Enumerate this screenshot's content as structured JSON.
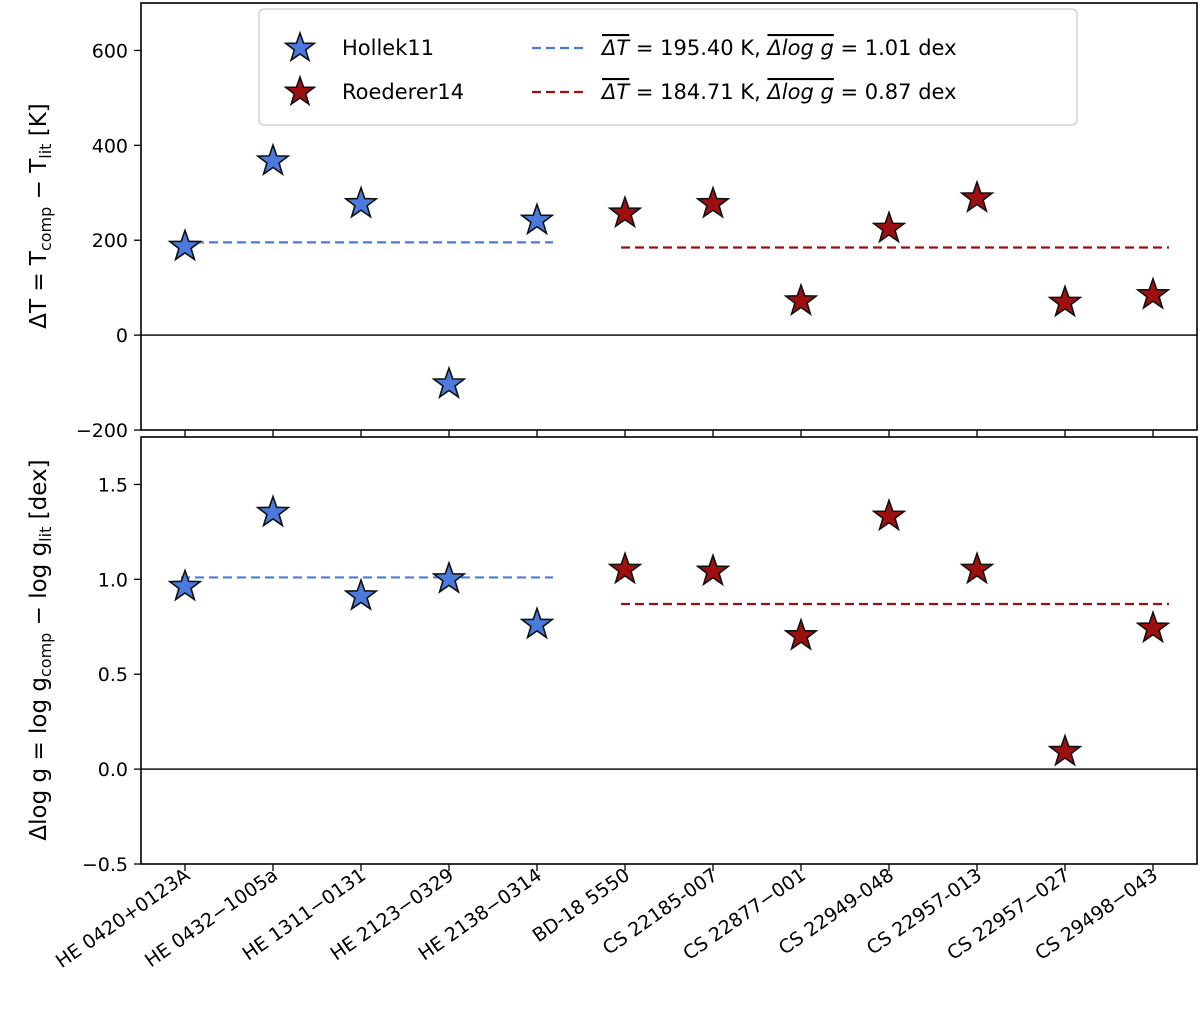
{
  "chart_data": [
    {
      "type": "scatter",
      "panel": "top",
      "ylabel_parts": [
        "ΔT = T",
        "comp",
        " − T",
        "lit",
        " [K]"
      ],
      "ylim": [
        -200,
        700
      ],
      "yticks": [
        -200,
        0,
        200,
        400,
        600
      ],
      "ytick_labels": [
        "−200",
        "0",
        "200",
        "400",
        "600"
      ],
      "categories": [
        "HE 0420+0123A",
        "HE 0432−1005a",
        "HE 1311−0131",
        "HE 2123−0329",
        "HE 2138−0314",
        "BD-18 5550",
        "CS 22185-007",
        "CS 22877−001",
        "CS 22949-048",
        "CS 22957-013",
        "CS 22957−027",
        "CS 29498−043"
      ],
      "series": [
        {
          "name": "Hollek11",
          "color": "#4a7bdc",
          "x_index": [
            0,
            1,
            2,
            3,
            4
          ],
          "values": [
            190,
            370,
            280,
            -100,
            245
          ],
          "mean": 195.4,
          "mean_range": [
            0,
            4
          ]
        },
        {
          "name": "Roederer14",
          "color": "#9e1010",
          "x_index": [
            5,
            6,
            7,
            8,
            9,
            10,
            11
          ],
          "values": [
            260,
            280,
            75,
            228,
            292,
            72,
            88
          ],
          "mean": 184.71,
          "mean_range": [
            5,
            11
          ]
        }
      ],
      "legend": {
        "placement": "top-center",
        "entries": [
          {
            "label": "Hollek11",
            "kind": "marker",
            "color": "#4a7bdc"
          },
          {
            "label": "Roederer14",
            "kind": "marker",
            "color": "#9e1010"
          },
          {
            "label_parts": [
              "ΔT",
              " = 195.40 K, ",
              "Δlog g",
              " = 1.01 dex"
            ],
            "kind": "dashed",
            "color": "#4a7bdc"
          },
          {
            "label_parts": [
              "ΔT",
              " = 184.71 K, ",
              "Δlog g",
              " = 0.87 dex"
            ],
            "kind": "dashed",
            "color": "#9e1010"
          }
        ]
      }
    },
    {
      "type": "scatter",
      "panel": "bottom",
      "ylabel_parts": [
        "Δlog g = log g",
        "comp",
        " − log g",
        "lit",
        " [dex]"
      ],
      "ylim": [
        -0.5,
        1.75
      ],
      "yticks": [
        -0.5,
        0.0,
        0.5,
        1.0,
        1.5
      ],
      "ytick_labels": [
        "−0.5",
        "0.0",
        "0.5",
        "1.0",
        "1.5"
      ],
      "series": [
        {
          "name": "Hollek11",
          "color": "#4a7bdc",
          "x_index": [
            0,
            1,
            2,
            3,
            4
          ],
          "values": [
            0.97,
            1.36,
            0.92,
            1.01,
            0.77
          ],
          "mean": 1.01,
          "mean_range": [
            0,
            4
          ]
        },
        {
          "name": "Roederer14",
          "color": "#9e1010",
          "x_index": [
            5,
            6,
            7,
            8,
            9,
            10,
            11
          ],
          "values": [
            1.06,
            1.05,
            0.71,
            1.34,
            1.06,
            0.1,
            0.75
          ],
          "mean": 0.87,
          "mean_range": [
            5,
            11
          ]
        }
      ]
    }
  ]
}
